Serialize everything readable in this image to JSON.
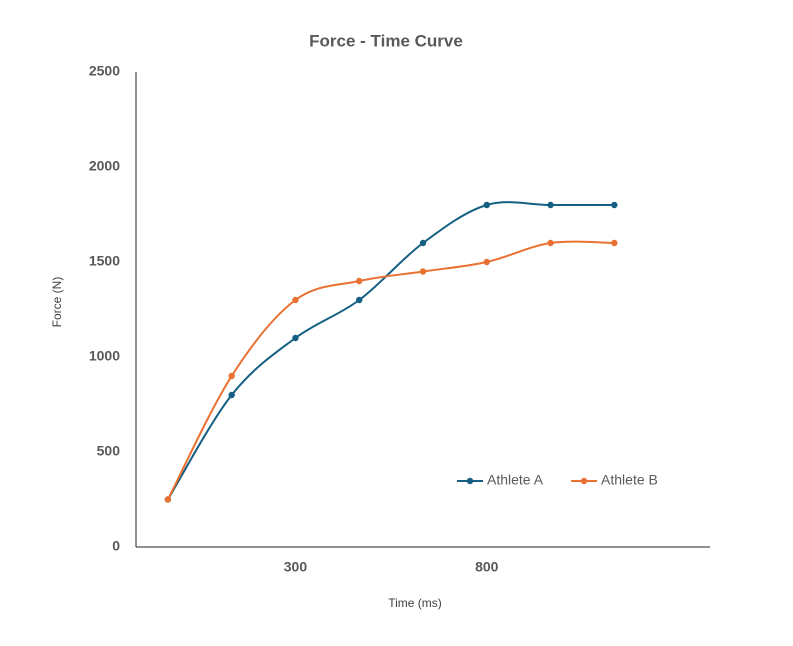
{
  "chart_data": {
    "type": "line",
    "title": "Force - Time Curve",
    "x_label": "Time (ms)",
    "y_label": "Force  (N)",
    "categories": [
      null,
      null,
      "300",
      null,
      null,
      "800",
      null,
      null
    ],
    "series": [
      {
        "name": "Athlete A",
        "color": "#156082",
        "values": [
          250,
          800,
          1100,
          1300,
          1600,
          1800,
          1800,
          1800
        ]
      },
      {
        "name": "Athlete B",
        "color": "#e97132",
        "values": [
          250,
          900,
          1300,
          1400,
          1450,
          1500,
          1600,
          1600
        ]
      }
    ],
    "ylim": [
      0,
      2500
    ],
    "yticks": [
      0,
      500,
      1000,
      1500,
      2000,
      2500
    ],
    "grid": false,
    "smooth": true,
    "legend_position": "lower right"
  }
}
